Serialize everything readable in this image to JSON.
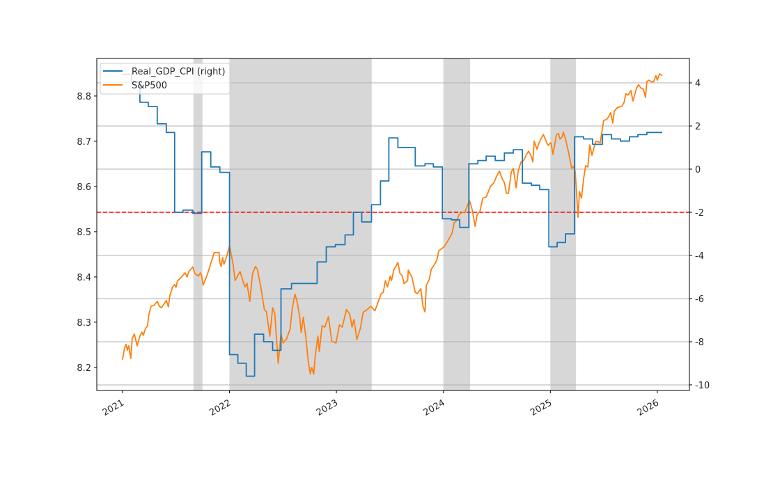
{
  "chart_data": {
    "type": "line",
    "title": "",
    "xlabel": "",
    "ylabel_left": "",
    "ylabel_right": "",
    "x_tick_labels": [
      "2021",
      "2022",
      "2023",
      "2024",
      "2025",
      "2026"
    ],
    "x_ticks": [
      2021,
      2022,
      2023,
      2024,
      2025,
      2026
    ],
    "xlim": [
      2020.76,
      2026.3
    ],
    "y_left_ticks": [
      8.2,
      8.3,
      8.4,
      8.5,
      8.6,
      8.7,
      8.8
    ],
    "y_left_tick_labels": [
      "8.2",
      "8.3",
      "8.4",
      "8.5",
      "8.6",
      "8.7",
      "8.8"
    ],
    "ylim_left": [
      8.149,
      8.883
    ],
    "y_right_ticks": [
      -10,
      -8,
      -6,
      -4,
      -2,
      0,
      2,
      4
    ],
    "y_right_tick_labels": [
      "-10",
      "-8",
      "-6",
      "-4",
      "-2",
      "0",
      "2",
      "4"
    ],
    "ylim_right": [
      -10.26,
      5.13
    ],
    "grid": "horizontal on right axis",
    "legend_position": "upper left",
    "legend": [
      "Real_GDP_CPI (right)",
      "S&P500"
    ],
    "reference_line": {
      "axis": "right",
      "value": -2,
      "color": "#ff0000",
      "style": "dashed"
    },
    "shaded_regions": [
      [
        2021.663,
        2021.748
      ],
      [
        2022.0,
        2023.33
      ],
      [
        2024.0,
        2024.25
      ],
      [
        2025.0,
        2025.24
      ]
    ],
    "series": [
      {
        "name": "Real_GDP_CPI (right)",
        "axis": "right",
        "color": "#1f77b4",
        "style": "step",
        "points": [
          [
            2021.0,
            4.4
          ],
          [
            2021.085,
            4.05
          ],
          [
            2021.163,
            3.1
          ],
          [
            2021.241,
            2.9
          ],
          [
            2021.325,
            2.1
          ],
          [
            2021.41,
            1.7
          ],
          [
            2021.488,
            -2.0
          ],
          [
            2021.566,
            -1.9
          ],
          [
            2021.657,
            -2.05
          ],
          [
            2021.741,
            0.8
          ],
          [
            2021.826,
            0.1
          ],
          [
            2021.91,
            -0.15
          ],
          [
            2022.001,
            -8.6
          ],
          [
            2022.079,
            -9.0
          ],
          [
            2022.157,
            -9.6
          ],
          [
            2022.235,
            -7.65
          ],
          [
            2022.32,
            -8.0
          ],
          [
            2022.404,
            -8.4
          ],
          [
            2022.482,
            -5.55
          ],
          [
            2022.58,
            -5.3
          ],
          [
            2022.736,
            -5.3
          ],
          [
            2022.82,
            -4.3
          ],
          [
            2022.905,
            -3.6
          ],
          [
            2022.99,
            -3.5
          ],
          [
            2023.081,
            -3.05
          ],
          [
            2023.159,
            -2.0
          ],
          [
            2023.237,
            -2.45
          ],
          [
            2023.328,
            -1.65
          ],
          [
            2023.412,
            -0.55
          ],
          [
            2023.49,
            1.45
          ],
          [
            2023.575,
            1.0
          ],
          [
            2023.659,
            1.0
          ],
          [
            2023.737,
            0.15
          ],
          [
            2023.828,
            0.25
          ],
          [
            2023.906,
            0.1
          ],
          [
            2023.991,
            -2.3
          ],
          [
            2024.075,
            -2.35
          ],
          [
            2024.153,
            -2.7
          ],
          [
            2024.238,
            0.25
          ],
          [
            2024.322,
            0.4
          ],
          [
            2024.4,
            0.6
          ],
          [
            2024.485,
            0.4
          ],
          [
            2024.57,
            0.75
          ],
          [
            2024.654,
            0.9
          ],
          [
            2024.739,
            -0.65
          ],
          [
            2024.823,
            -0.75
          ],
          [
            2024.901,
            -0.95
          ],
          [
            2024.986,
            -3.6
          ],
          [
            2025.064,
            -3.4
          ],
          [
            2025.142,
            -3.0
          ],
          [
            2025.226,
            1.5
          ],
          [
            2025.311,
            1.4
          ],
          [
            2025.395,
            1.15
          ],
          [
            2025.486,
            1.6
          ],
          [
            2025.571,
            1.4
          ],
          [
            2025.655,
            1.3
          ],
          [
            2025.74,
            1.5
          ],
          [
            2025.818,
            1.6
          ],
          [
            2025.902,
            1.7
          ],
          [
            2026.046,
            1.7
          ]
        ]
      },
      {
        "name": "S&P500",
        "axis": "left",
        "color": "#ff7f0e",
        "style": "line",
        "points": [
          [
            2021.0,
            8.217
          ],
          [
            2021.02,
            8.243
          ],
          [
            2021.033,
            8.251
          ],
          [
            2021.046,
            8.238
          ],
          [
            2021.059,
            8.248
          ],
          [
            2021.078,
            8.22
          ],
          [
            2021.091,
            8.263
          ],
          [
            2021.111,
            8.274
          ],
          [
            2021.137,
            8.248
          ],
          [
            2021.163,
            8.269
          ],
          [
            2021.182,
            8.278
          ],
          [
            2021.195,
            8.271
          ],
          [
            2021.215,
            8.286
          ],
          [
            2021.234,
            8.292
          ],
          [
            2021.247,
            8.317
          ],
          [
            2021.267,
            8.335
          ],
          [
            2021.299,
            8.338
          ],
          [
            2021.325,
            8.346
          ],
          [
            2021.345,
            8.335
          ],
          [
            2021.364,
            8.332
          ],
          [
            2021.397,
            8.343
          ],
          [
            2021.41,
            8.348
          ],
          [
            2021.429,
            8.334
          ],
          [
            2021.442,
            8.358
          ],
          [
            2021.468,
            8.378
          ],
          [
            2021.488,
            8.383
          ],
          [
            2021.501,
            8.377
          ],
          [
            2021.514,
            8.391
          ],
          [
            2021.553,
            8.4
          ],
          [
            2021.585,
            8.409
          ],
          [
            2021.605,
            8.4
          ],
          [
            2021.618,
            8.411
          ],
          [
            2021.657,
            8.422
          ],
          [
            2021.676,
            8.408
          ],
          [
            2021.709,
            8.402
          ],
          [
            2021.728,
            8.409
          ],
          [
            2021.741,
            8.402
          ],
          [
            2021.754,
            8.382
          ],
          [
            2021.793,
            8.405
          ],
          [
            2021.832,
            8.435
          ],
          [
            2021.858,
            8.454
          ],
          [
            2021.904,
            8.454
          ],
          [
            2021.91,
            8.432
          ],
          [
            2021.923,
            8.423
          ],
          [
            2021.936,
            8.443
          ],
          [
            2021.949,
            8.428
          ],
          [
            2021.975,
            8.446
          ],
          [
            2022.001,
            8.469
          ],
          [
            2022.034,
            8.428
          ],
          [
            2022.053,
            8.392
          ],
          [
            2022.099,
            8.412
          ],
          [
            2022.144,
            8.378
          ],
          [
            2022.164,
            8.386
          ],
          [
            2022.19,
            8.346
          ],
          [
            2022.216,
            8.408
          ],
          [
            2022.242,
            8.423
          ],
          [
            2022.261,
            8.417
          ],
          [
            2022.294,
            8.377
          ],
          [
            2022.326,
            8.328
          ],
          [
            2022.346,
            8.323
          ],
          [
            2022.378,
            8.269
          ],
          [
            2022.404,
            8.332
          ],
          [
            2022.424,
            8.32
          ],
          [
            2022.456,
            8.209
          ],
          [
            2022.482,
            8.274
          ],
          [
            2022.502,
            8.254
          ],
          [
            2022.534,
            8.263
          ],
          [
            2022.567,
            8.285
          ],
          [
            2022.586,
            8.328
          ],
          [
            2022.612,
            8.362
          ],
          [
            2022.632,
            8.346
          ],
          [
            2022.658,
            8.309
          ],
          [
            2022.671,
            8.277
          ],
          [
            2022.69,
            8.311
          ],
          [
            2022.716,
            8.263
          ],
          [
            2022.736,
            8.215
          ],
          [
            2022.756,
            8.186
          ],
          [
            2022.769,
            8.2
          ],
          [
            2022.788,
            8.185
          ],
          [
            2022.801,
            8.223
          ],
          [
            2022.827,
            8.269
          ],
          [
            2022.84,
            8.235
          ],
          [
            2022.866,
            8.292
          ],
          [
            2022.892,
            8.289
          ],
          [
            2022.925,
            8.312
          ],
          [
            2022.957,
            8.258
          ],
          [
            2022.996,
            8.254
          ],
          [
            2023.029,
            8.294
          ],
          [
            2023.055,
            8.289
          ],
          [
            2023.081,
            8.315
          ],
          [
            2023.094,
            8.328
          ],
          [
            2023.126,
            8.317
          ],
          [
            2023.146,
            8.289
          ],
          [
            2023.165,
            8.306
          ],
          [
            2023.191,
            8.262
          ],
          [
            2023.224,
            8.286
          ],
          [
            2023.25,
            8.322
          ],
          [
            2023.289,
            8.328
          ],
          [
            2023.321,
            8.335
          ],
          [
            2023.36,
            8.325
          ],
          [
            2023.386,
            8.342
          ],
          [
            2023.419,
            8.363
          ],
          [
            2023.438,
            8.366
          ],
          [
            2023.458,
            8.392
          ],
          [
            2023.477,
            8.378
          ],
          [
            2023.503,
            8.402
          ],
          [
            2023.516,
            8.392
          ],
          [
            2023.536,
            8.415
          ],
          [
            2023.575,
            8.432
          ],
          [
            2023.594,
            8.408
          ],
          [
            2023.614,
            8.403
          ],
          [
            2023.633,
            8.385
          ],
          [
            2023.666,
            8.392
          ],
          [
            2023.672,
            8.415
          ],
          [
            2023.705,
            8.4
          ],
          [
            2023.737,
            8.366
          ],
          [
            2023.757,
            8.363
          ],
          [
            2023.789,
            8.374
          ],
          [
            2023.809,
            8.335
          ],
          [
            2023.828,
            8.323
          ],
          [
            2023.841,
            8.382
          ],
          [
            2023.867,
            8.394
          ],
          [
            2023.887,
            8.417
          ],
          [
            2023.913,
            8.426
          ],
          [
            2023.939,
            8.437
          ],
          [
            2023.958,
            8.458
          ],
          [
            2024.004,
            8.466
          ],
          [
            2024.036,
            8.477
          ],
          [
            2024.082,
            8.497
          ],
          [
            2024.101,
            8.52
          ],
          [
            2024.127,
            8.525
          ],
          [
            2024.147,
            8.538
          ],
          [
            2024.179,
            8.543
          ],
          [
            2024.199,
            8.542
          ],
          [
            2024.225,
            8.558
          ],
          [
            2024.244,
            8.569
          ],
          [
            2024.27,
            8.548
          ],
          [
            2024.297,
            8.512
          ],
          [
            2024.316,
            8.538
          ],
          [
            2024.342,
            8.545
          ],
          [
            2024.368,
            8.574
          ],
          [
            2024.401,
            8.577
          ],
          [
            2024.44,
            8.6
          ],
          [
            2024.472,
            8.608
          ],
          [
            2024.498,
            8.623
          ],
          [
            2024.524,
            8.634
          ],
          [
            2024.55,
            8.617
          ],
          [
            2024.57,
            8.609
          ],
          [
            2024.589,
            8.585
          ],
          [
            2024.609,
            8.585
          ],
          [
            2024.635,
            8.632
          ],
          [
            2024.654,
            8.64
          ],
          [
            2024.68,
            8.597
          ],
          [
            2024.7,
            8.635
          ],
          [
            2024.726,
            8.654
          ],
          [
            2024.752,
            8.658
          ],
          [
            2024.778,
            8.671
          ],
          [
            2024.797,
            8.678
          ],
          [
            2024.823,
            8.666
          ],
          [
            2024.836,
            8.654
          ],
          [
            2024.849,
            8.7
          ],
          [
            2024.875,
            8.682
          ],
          [
            2024.895,
            8.697
          ],
          [
            2024.934,
            8.715
          ],
          [
            2024.966,
            8.697
          ],
          [
            2024.979,
            8.691
          ],
          [
            2025.005,
            8.697
          ],
          [
            2025.025,
            8.671
          ],
          [
            2025.057,
            8.715
          ],
          [
            2025.077,
            8.717
          ],
          [
            2025.09,
            8.705
          ],
          [
            2025.109,
            8.709
          ],
          [
            2025.122,
            8.72
          ],
          [
            2025.142,
            8.705
          ],
          [
            2025.168,
            8.678
          ],
          [
            2025.2,
            8.64
          ],
          [
            2025.22,
            8.645
          ],
          [
            2025.233,
            8.631
          ],
          [
            2025.246,
            8.582
          ],
          [
            2025.259,
            8.532
          ],
          [
            2025.272,
            8.589
          ],
          [
            2025.291,
            8.574
          ],
          [
            2025.311,
            8.617
          ],
          [
            2025.33,
            8.646
          ],
          [
            2025.35,
            8.643
          ],
          [
            2025.369,
            8.692
          ],
          [
            2025.389,
            8.669
          ],
          [
            2025.415,
            8.692
          ],
          [
            2025.428,
            8.7
          ],
          [
            2025.467,
            8.697
          ],
          [
            2025.486,
            8.728
          ],
          [
            2025.499,
            8.746
          ],
          [
            2025.525,
            8.748
          ],
          [
            2025.545,
            8.754
          ],
          [
            2025.564,
            8.763
          ],
          [
            2025.584,
            8.74
          ],
          [
            2025.597,
            8.766
          ],
          [
            2025.629,
            8.775
          ],
          [
            2025.668,
            8.777
          ],
          [
            2025.688,
            8.785
          ],
          [
            2025.707,
            8.805
          ],
          [
            2025.727,
            8.802
          ],
          [
            2025.753,
            8.812
          ],
          [
            2025.772,
            8.789
          ],
          [
            2025.805,
            8.817
          ],
          [
            2025.824,
            8.825
          ],
          [
            2025.85,
            8.817
          ],
          [
            2025.87,
            8.815
          ],
          [
            2025.889,
            8.797
          ],
          [
            2025.902,
            8.832
          ],
          [
            2025.922,
            8.835
          ],
          [
            2025.948,
            8.831
          ],
          [
            2025.967,
            8.832
          ],
          [
            2025.987,
            8.845
          ],
          [
            2026.0,
            8.835
          ],
          [
            2026.02,
            8.849
          ],
          [
            2026.046,
            8.845
          ]
        ]
      }
    ]
  },
  "legend": {
    "items": [
      {
        "label": "Real_GDP_CPI (right)",
        "color": "#1f77b4"
      },
      {
        "label": "S&P500",
        "color": "#ff7f0e"
      }
    ]
  },
  "colors": {
    "shade": "#d3d3d3",
    "grid": "#b0b0b0",
    "reference": "#ff0000"
  }
}
